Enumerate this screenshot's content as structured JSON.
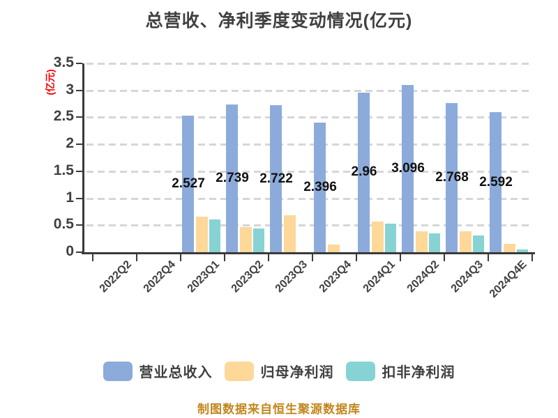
{
  "title": "总营收、净利季度变动情况(亿元)",
  "footer_note": "制图数据来自恒生聚源数据库",
  "colors": {
    "text": "#404040",
    "axis": "#3a3a3a",
    "grid": "#d6d6d6",
    "value_label": "#111111",
    "y_axis_label": "#ff0000",
    "footer": "#c2861c",
    "background": "#ffffff"
  },
  "y_axis": {
    "label": "(亿元)",
    "tick_labels": [
      "0",
      "0.5",
      "1",
      "1.5",
      "2",
      "2.5",
      "3",
      "3.5"
    ]
  },
  "legend": {
    "items": [
      {
        "label": "营业总收入",
        "color": "#8cabdb"
      },
      {
        "label": "归母净利润",
        "color": "#fdd899"
      },
      {
        "label": "扣非净利润",
        "color": "#87d3d3"
      }
    ]
  },
  "chart_data": {
    "type": "bar",
    "title": "总营收、净利季度变动情况(亿元)",
    "ylabel": "(亿元)",
    "ylim": [
      0,
      3.5
    ],
    "grid": "dashed-horizontal",
    "legend_position": "bottom",
    "categories": [
      "2022Q2",
      "2022Q4",
      "2023Q1",
      "2023Q2",
      "2023Q3",
      "2023Q4",
      "2024Q1",
      "2024Q2",
      "2024Q3",
      "2024Q4E"
    ],
    "series": [
      {
        "name": "营业总收入",
        "color": "#8cabdb",
        "show_value_labels": true,
        "values": [
          null,
          null,
          2.527,
          2.739,
          2.722,
          2.396,
          2.96,
          3.096,
          2.768,
          2.592
        ]
      },
      {
        "name": "归母净利润",
        "color": "#fdd899",
        "show_value_labels": false,
        "values": [
          null,
          null,
          0.66,
          0.47,
          0.68,
          0.14,
          0.57,
          0.39,
          0.39,
          0.15
        ]
      },
      {
        "name": "扣非净利润",
        "color": "#87d3d3",
        "show_value_labels": false,
        "values": [
          null,
          null,
          0.61,
          0.44,
          null,
          null,
          0.53,
          0.35,
          0.31,
          0.05
        ]
      }
    ]
  }
}
